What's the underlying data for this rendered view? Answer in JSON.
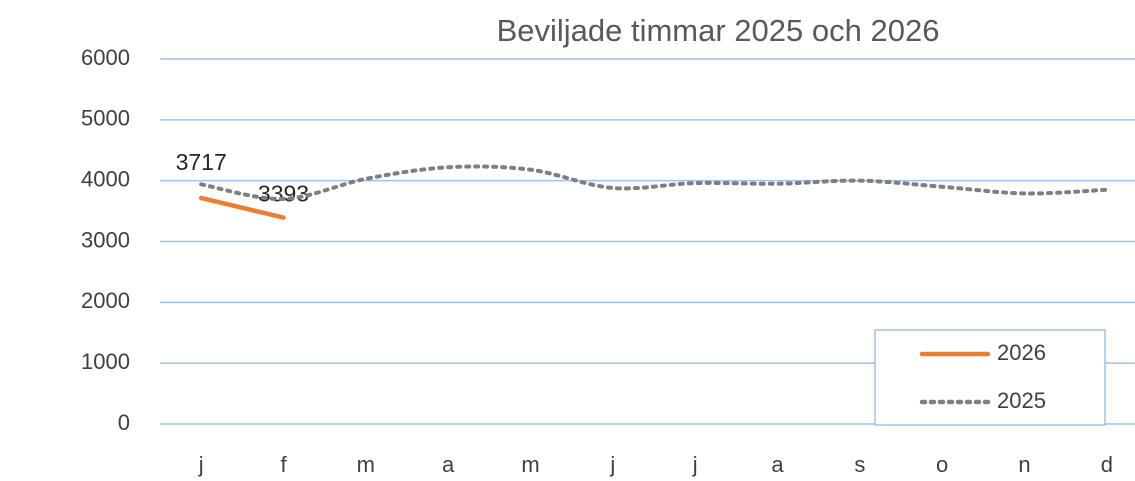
{
  "chart_data": {
    "type": "line",
    "title": "Beviljade timmar 2025 och 2026",
    "categories": [
      "j",
      "f",
      "m",
      "a",
      "m",
      "j",
      "j",
      "a",
      "s",
      "o",
      "n",
      "d"
    ],
    "series": [
      {
        "name": "2026",
        "color": "#ed7d31",
        "style": "solid",
        "data_labels": true,
        "values": [
          3717,
          3393,
          null,
          null,
          null,
          null,
          null,
          null,
          null,
          null,
          null,
          null
        ]
      },
      {
        "name": "2025",
        "color": "#7f7f7f",
        "style": "dotted",
        "smooth": true,
        "values": [
          3940,
          3700,
          4030,
          4220,
          4180,
          3880,
          3960,
          3950,
          4000,
          3900,
          3790,
          3850
        ]
      }
    ],
    "ylim": [
      0,
      6000
    ],
    "yticks": [
      0,
      1000,
      2000,
      3000,
      4000,
      5000,
      6000
    ],
    "grid": true,
    "legend": "bottom-right"
  }
}
